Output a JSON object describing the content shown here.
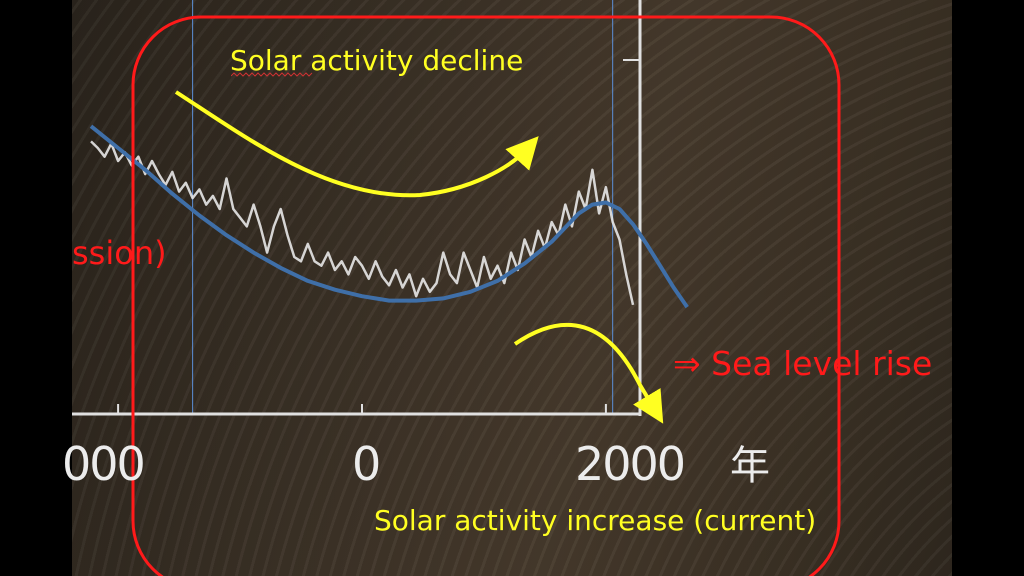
{
  "slide": {
    "annotations": {
      "decline": "Solar activity decline",
      "increase": "Solar activity increase (current)",
      "sea_level": "⇒ Sea level rise",
      "partial_left": "ssion)"
    },
    "colors": {
      "annotation_text": "#ffff22",
      "highlight_box": "#ff1a1a",
      "arrow": "#ffff22",
      "trend_line": "#3f6fa8",
      "data_trace": "#e8e8e8",
      "reference_lines": "#5c8fd6"
    }
  },
  "chart_data": {
    "type": "line",
    "x_tick_labels": [
      "000",
      "0",
      "2000",
      "年"
    ],
    "xlim": [
      -1800,
      2400
    ],
    "reference_lines_x": [
      -1250,
      1850
    ],
    "series": [
      {
        "role": "raw-record",
        "x": [
          -2000,
          -1950,
          -1900,
          -1850,
          -1800,
          -1750,
          -1700,
          -1650,
          -1600,
          -1550,
          -1500,
          -1450,
          -1400,
          -1350,
          -1300,
          -1250,
          -1200,
          -1150,
          -1100,
          -1050,
          -1000,
          -950,
          -900,
          -850,
          -800,
          -750,
          -700,
          -650,
          -600,
          -550,
          -500,
          -450,
          -400,
          -350,
          -300,
          -250,
          -200,
          -150,
          -100,
          -50,
          0,
          50,
          100,
          150,
          200,
          250,
          300,
          350,
          400,
          450,
          500,
          550,
          600,
          650,
          700,
          750,
          800,
          850,
          900,
          950,
          1000,
          1050,
          1100,
          1150,
          1200,
          1250,
          1300,
          1350,
          1400,
          1450,
          1500,
          1550,
          1600,
          1650,
          1700,
          1750,
          1800,
          1850,
          1900,
          1950,
          2000
        ],
        "y": [
          0.81,
          0.78,
          0.74,
          0.8,
          0.72,
          0.76,
          0.7,
          0.74,
          0.66,
          0.72,
          0.66,
          0.61,
          0.67,
          0.58,
          0.62,
          0.55,
          0.59,
          0.52,
          0.56,
          0.5,
          0.64,
          0.5,
          0.46,
          0.42,
          0.52,
          0.42,
          0.3,
          0.42,
          0.5,
          0.38,
          0.28,
          0.26,
          0.34,
          0.26,
          0.24,
          0.3,
          0.22,
          0.26,
          0.2,
          0.28,
          0.24,
          0.18,
          0.26,
          0.19,
          0.15,
          0.22,
          0.14,
          0.2,
          0.1,
          0.18,
          0.12,
          0.16,
          0.3,
          0.2,
          0.16,
          0.3,
          0.22,
          0.14,
          0.28,
          0.18,
          0.24,
          0.16,
          0.3,
          0.22,
          0.36,
          0.28,
          0.4,
          0.32,
          0.44,
          0.38,
          0.52,
          0.42,
          0.58,
          0.5,
          0.68,
          0.48,
          0.6,
          0.44,
          0.36,
          0.2,
          0.06
        ]
      },
      {
        "role": "trend",
        "x": [
          -2000,
          -1800,
          -1600,
          -1400,
          -1200,
          -1000,
          -800,
          -600,
          -400,
          -200,
          0,
          200,
          400,
          600,
          800,
          1000,
          1200,
          1400,
          1600,
          1700,
          1800,
          1900,
          2000,
          2100,
          2200,
          2300,
          2400
        ],
        "y": [
          0.88,
          0.78,
          0.68,
          0.57,
          0.47,
          0.38,
          0.3,
          0.23,
          0.17,
          0.13,
          0.1,
          0.08,
          0.08,
          0.09,
          0.12,
          0.17,
          0.25,
          0.35,
          0.48,
          0.52,
          0.53,
          0.5,
          0.43,
          0.34,
          0.24,
          0.14,
          0.05
        ]
      }
    ]
  }
}
